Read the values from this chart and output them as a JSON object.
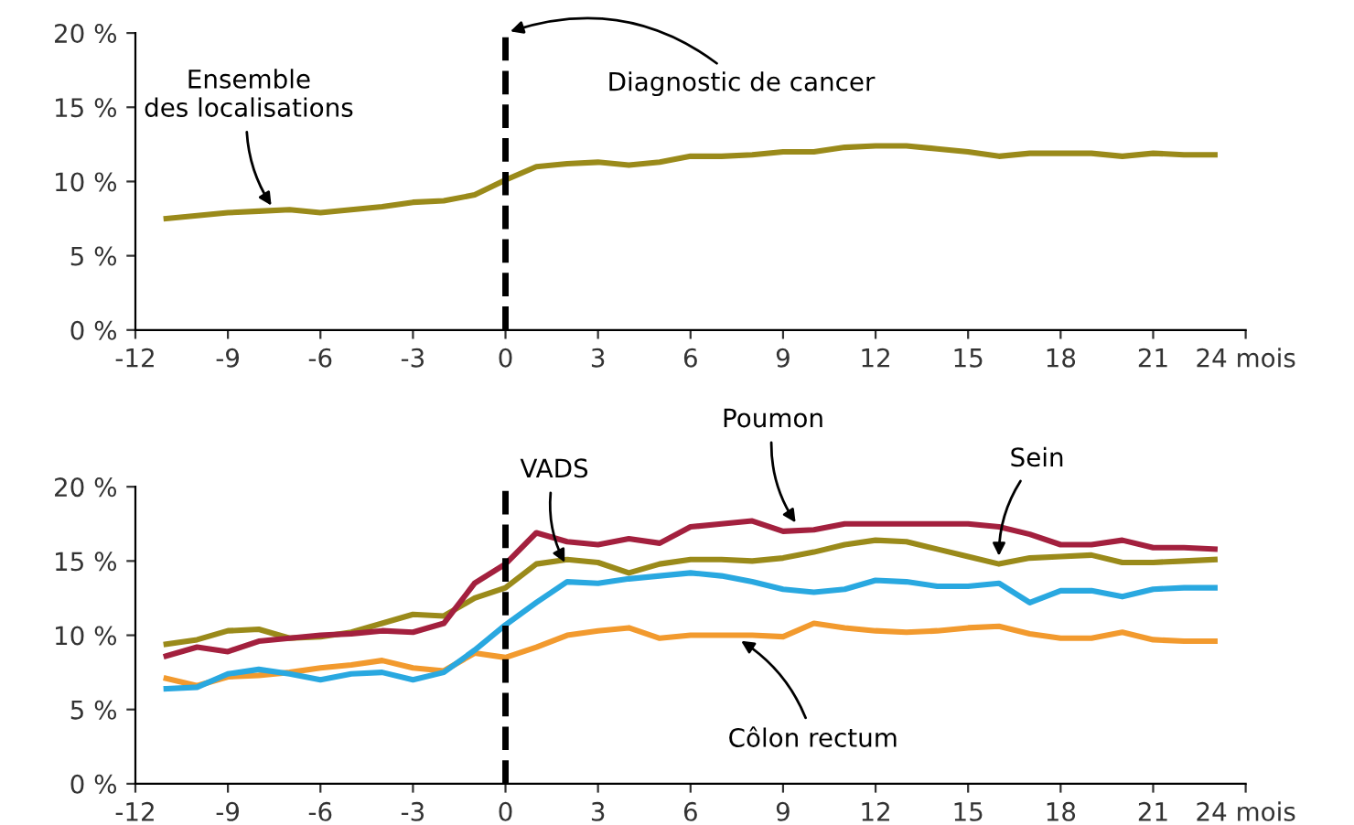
{
  "chart_data": [
    {
      "type": "line",
      "x": [
        -11,
        -10,
        -9,
        -8,
        -7,
        -6,
        -5,
        -4,
        -3,
        -2,
        -1,
        0,
        1,
        2,
        3,
        4,
        5,
        6,
        7,
        8,
        9,
        10,
        11,
        12,
        13,
        14,
        15,
        16,
        17,
        18,
        19,
        20,
        21,
        22,
        23
      ],
      "series": [
        {
          "color": "#9a8a1a",
          "values": [
            7.5,
            7.7,
            7.9,
            8.0,
            8.1,
            7.9,
            8.1,
            8.3,
            8.6,
            8.7,
            9.1,
            10.1,
            11.0,
            11.2,
            11.3,
            11.1,
            11.3,
            11.7,
            11.7,
            11.8,
            12.0,
            12.0,
            12.3,
            12.4,
            12.4,
            12.2,
            12.0,
            11.7,
            11.9,
            11.9,
            11.9,
            11.7,
            11.9,
            11.8,
            11.8
          ]
        }
      ],
      "xlim": [
        -12,
        24
      ],
      "xticks": [
        -12,
        -9,
        -6,
        -3,
        0,
        3,
        6,
        9,
        12,
        15,
        18,
        21,
        {
          "value": 24,
          "label": "24 mois"
        }
      ],
      "ylim": [
        0,
        20
      ],
      "yticks": [
        {
          "value": 0,
          "label": "0 %"
        },
        {
          "value": 5,
          "label": "5 %"
        },
        {
          "value": 10,
          "label": "10 %"
        },
        {
          "value": 15,
          "label": "15 %"
        },
        {
          "value": 20,
          "label": "20 %"
        }
      ],
      "grid": false,
      "legend": false,
      "marker": "none",
      "line_style": "solid",
      "ref_lines": [
        {
          "axis": "x",
          "value": 0,
          "label": "Diagnostic de cancer",
          "color": "#000000",
          "line_style": "dashed"
        }
      ],
      "annotations": [
        {
          "text": "Ensemble\ndes localisations",
          "x": -7.5,
          "y": 8.1
        }
      ]
    },
    {
      "type": "line",
      "x": [
        -11,
        -10,
        -9,
        -8,
        -7,
        -6,
        -5,
        -4,
        -3,
        -2,
        -1,
        0,
        1,
        2,
        3,
        4,
        5,
        6,
        7,
        8,
        9,
        10,
        11,
        12,
        13,
        14,
        15,
        16,
        17,
        18,
        19,
        20,
        21,
        22,
        23
      ],
      "series": [
        {
          "color": "#f29a2e",
          "values": [
            7.1,
            6.6,
            7.2,
            7.3,
            7.5,
            7.8,
            8.0,
            8.3,
            7.8,
            7.6,
            8.8,
            8.5,
            9.2,
            10.0,
            10.3,
            10.5,
            9.8,
            10.0,
            10.0,
            10.0,
            9.9,
            10.8,
            10.5,
            10.3,
            10.2,
            10.3,
            10.5,
            10.6,
            10.1,
            9.8,
            9.8,
            10.2,
            9.7,
            9.6,
            9.6
          ]
        },
        {
          "color": "#29a8e0",
          "values": [
            6.4,
            6.5,
            7.4,
            7.7,
            7.4,
            7.0,
            7.4,
            7.5,
            7.0,
            7.5,
            9.0,
            10.7,
            12.2,
            13.6,
            13.5,
            13.8,
            14.0,
            14.2,
            14.0,
            13.6,
            13.1,
            12.9,
            13.1,
            13.7,
            13.6,
            13.3,
            13.3,
            13.5,
            12.2,
            13.0,
            13.0,
            12.6,
            13.1,
            13.2,
            13.2
          ]
        },
        {
          "color": "#9a8a1a",
          "values": [
            9.4,
            9.7,
            10.3,
            10.4,
            9.8,
            9.9,
            10.2,
            10.8,
            11.4,
            11.3,
            12.5,
            13.2,
            14.8,
            15.1,
            14.9,
            14.2,
            14.8,
            15.1,
            15.1,
            15.0,
            15.2,
            15.6,
            16.1,
            16.4,
            16.3,
            15.8,
            15.3,
            14.8,
            15.2,
            15.3,
            15.4,
            14.9,
            14.9,
            15.0,
            15.1
          ]
        },
        {
          "color": "#a3203e",
          "values": [
            8.6,
            9.2,
            8.9,
            9.6,
            9.8,
            10.0,
            10.1,
            10.3,
            10.2,
            10.8,
            13.5,
            14.8,
            16.9,
            16.3,
            16.1,
            16.5,
            16.2,
            17.3,
            17.5,
            17.7,
            17.0,
            17.1,
            17.5,
            17.5,
            17.5,
            17.5,
            17.5,
            17.3,
            16.8,
            16.1,
            16.1,
            16.4,
            15.9,
            15.9,
            15.8
          ]
        }
      ],
      "xlim": [
        -12,
        24
      ],
      "xticks": [
        -12,
        -9,
        -6,
        -3,
        0,
        3,
        6,
        9,
        12,
        15,
        18,
        21,
        {
          "value": 24,
          "label": "24 mois"
        }
      ],
      "ylim": [
        0,
        20
      ],
      "yticks": [
        {
          "value": 0,
          "label": "0 %"
        },
        {
          "value": 5,
          "label": "5 %"
        },
        {
          "value": 10,
          "label": "10 %"
        },
        {
          "value": 15,
          "label": "15 %"
        },
        {
          "value": 20,
          "label": "20 %"
        }
      ],
      "grid": false,
      "legend": false,
      "marker": "none",
      "line_style": "solid",
      "ref_lines": [
        {
          "axis": "x",
          "value": 0,
          "label": null,
          "color": "#000000",
          "line_style": "dashed"
        }
      ],
      "annotations": [
        {
          "text": "VADS",
          "x": 2,
          "y": 14.6
        },
        {
          "text": "Poumon",
          "x": 9.5,
          "y": 17.3
        },
        {
          "text": "Sein",
          "x": 16,
          "y": 15.0
        },
        {
          "text": "Côlon rectum",
          "x": 7.5,
          "y": 9.8
        }
      ]
    }
  ]
}
